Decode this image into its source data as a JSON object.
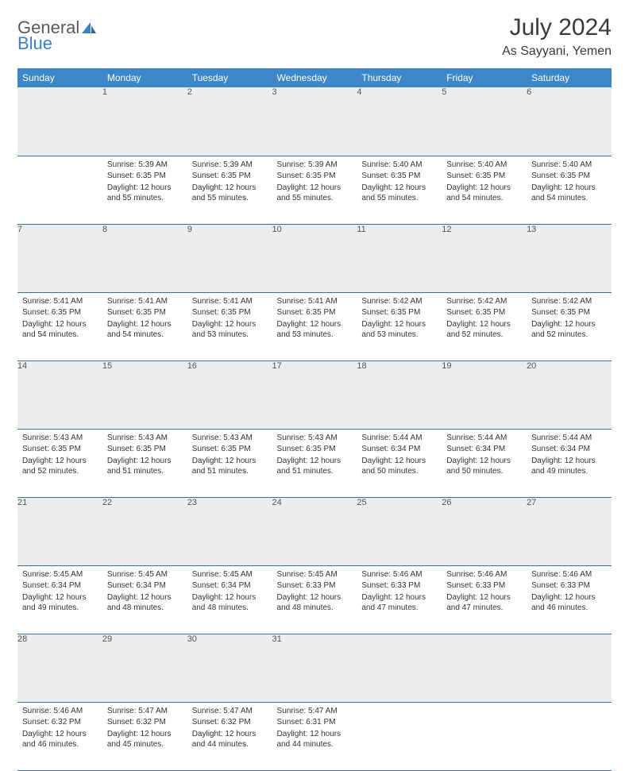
{
  "logo": {
    "text1": "General",
    "text2": "Blue"
  },
  "title": "July 2024",
  "location": "As Sayyani, Yemen",
  "style": {
    "header_bg": "#3b87c8",
    "header_fg": "#ffffff",
    "daynum_bg": "#eceded",
    "row_border": "#3b6fa0",
    "logo_gray": "#5a5a5a",
    "logo_blue": "#3b7fc4",
    "text_color": "#333333",
    "title_fontsize": 30,
    "location_fontsize": 16,
    "dayheader_fontsize": 12,
    "cell_fontsize": 10
  },
  "dayHeaders": [
    "Sunday",
    "Monday",
    "Tuesday",
    "Wednesday",
    "Thursday",
    "Friday",
    "Saturday"
  ],
  "weeks": [
    {
      "nums": [
        "",
        "1",
        "2",
        "3",
        "4",
        "5",
        "6"
      ],
      "cells": [
        null,
        {
          "sunrise": "5:39 AM",
          "sunset": "6:35 PM",
          "daylight": "12 hours and 55 minutes."
        },
        {
          "sunrise": "5:39 AM",
          "sunset": "6:35 PM",
          "daylight": "12 hours and 55 minutes."
        },
        {
          "sunrise": "5:39 AM",
          "sunset": "6:35 PM",
          "daylight": "12 hours and 55 minutes."
        },
        {
          "sunrise": "5:40 AM",
          "sunset": "6:35 PM",
          "daylight": "12 hours and 55 minutes."
        },
        {
          "sunrise": "5:40 AM",
          "sunset": "6:35 PM",
          "daylight": "12 hours and 54 minutes."
        },
        {
          "sunrise": "5:40 AM",
          "sunset": "6:35 PM",
          "daylight": "12 hours and 54 minutes."
        }
      ]
    },
    {
      "nums": [
        "7",
        "8",
        "9",
        "10",
        "11",
        "12",
        "13"
      ],
      "cells": [
        {
          "sunrise": "5:41 AM",
          "sunset": "6:35 PM",
          "daylight": "12 hours and 54 minutes."
        },
        {
          "sunrise": "5:41 AM",
          "sunset": "6:35 PM",
          "daylight": "12 hours and 54 minutes."
        },
        {
          "sunrise": "5:41 AM",
          "sunset": "6:35 PM",
          "daylight": "12 hours and 53 minutes."
        },
        {
          "sunrise": "5:41 AM",
          "sunset": "6:35 PM",
          "daylight": "12 hours and 53 minutes."
        },
        {
          "sunrise": "5:42 AM",
          "sunset": "6:35 PM",
          "daylight": "12 hours and 53 minutes."
        },
        {
          "sunrise": "5:42 AM",
          "sunset": "6:35 PM",
          "daylight": "12 hours and 52 minutes."
        },
        {
          "sunrise": "5:42 AM",
          "sunset": "6:35 PM",
          "daylight": "12 hours and 52 minutes."
        }
      ]
    },
    {
      "nums": [
        "14",
        "15",
        "16",
        "17",
        "18",
        "19",
        "20"
      ],
      "cells": [
        {
          "sunrise": "5:43 AM",
          "sunset": "6:35 PM",
          "daylight": "12 hours and 52 minutes."
        },
        {
          "sunrise": "5:43 AM",
          "sunset": "6:35 PM",
          "daylight": "12 hours and 51 minutes."
        },
        {
          "sunrise": "5:43 AM",
          "sunset": "6:35 PM",
          "daylight": "12 hours and 51 minutes."
        },
        {
          "sunrise": "5:43 AM",
          "sunset": "6:35 PM",
          "daylight": "12 hours and 51 minutes."
        },
        {
          "sunrise": "5:44 AM",
          "sunset": "6:34 PM",
          "daylight": "12 hours and 50 minutes."
        },
        {
          "sunrise": "5:44 AM",
          "sunset": "6:34 PM",
          "daylight": "12 hours and 50 minutes."
        },
        {
          "sunrise": "5:44 AM",
          "sunset": "6:34 PM",
          "daylight": "12 hours and 49 minutes."
        }
      ]
    },
    {
      "nums": [
        "21",
        "22",
        "23",
        "24",
        "25",
        "26",
        "27"
      ],
      "cells": [
        {
          "sunrise": "5:45 AM",
          "sunset": "6:34 PM",
          "daylight": "12 hours and 49 minutes."
        },
        {
          "sunrise": "5:45 AM",
          "sunset": "6:34 PM",
          "daylight": "12 hours and 48 minutes."
        },
        {
          "sunrise": "5:45 AM",
          "sunset": "6:34 PM",
          "daylight": "12 hours and 48 minutes."
        },
        {
          "sunrise": "5:45 AM",
          "sunset": "6:33 PM",
          "daylight": "12 hours and 48 minutes."
        },
        {
          "sunrise": "5:46 AM",
          "sunset": "6:33 PM",
          "daylight": "12 hours and 47 minutes."
        },
        {
          "sunrise": "5:46 AM",
          "sunset": "6:33 PM",
          "daylight": "12 hours and 47 minutes."
        },
        {
          "sunrise": "5:46 AM",
          "sunset": "6:33 PM",
          "daylight": "12 hours and 46 minutes."
        }
      ]
    },
    {
      "nums": [
        "28",
        "29",
        "30",
        "31",
        "",
        "",
        ""
      ],
      "cells": [
        {
          "sunrise": "5:46 AM",
          "sunset": "6:32 PM",
          "daylight": "12 hours and 46 minutes."
        },
        {
          "sunrise": "5:47 AM",
          "sunset": "6:32 PM",
          "daylight": "12 hours and 45 minutes."
        },
        {
          "sunrise": "5:47 AM",
          "sunset": "6:32 PM",
          "daylight": "12 hours and 44 minutes."
        },
        {
          "sunrise": "5:47 AM",
          "sunset": "6:31 PM",
          "daylight": "12 hours and 44 minutes."
        },
        null,
        null,
        null
      ]
    }
  ],
  "labels": {
    "sunrise": "Sunrise: ",
    "sunset": "Sunset: ",
    "daylight": "Daylight: "
  }
}
